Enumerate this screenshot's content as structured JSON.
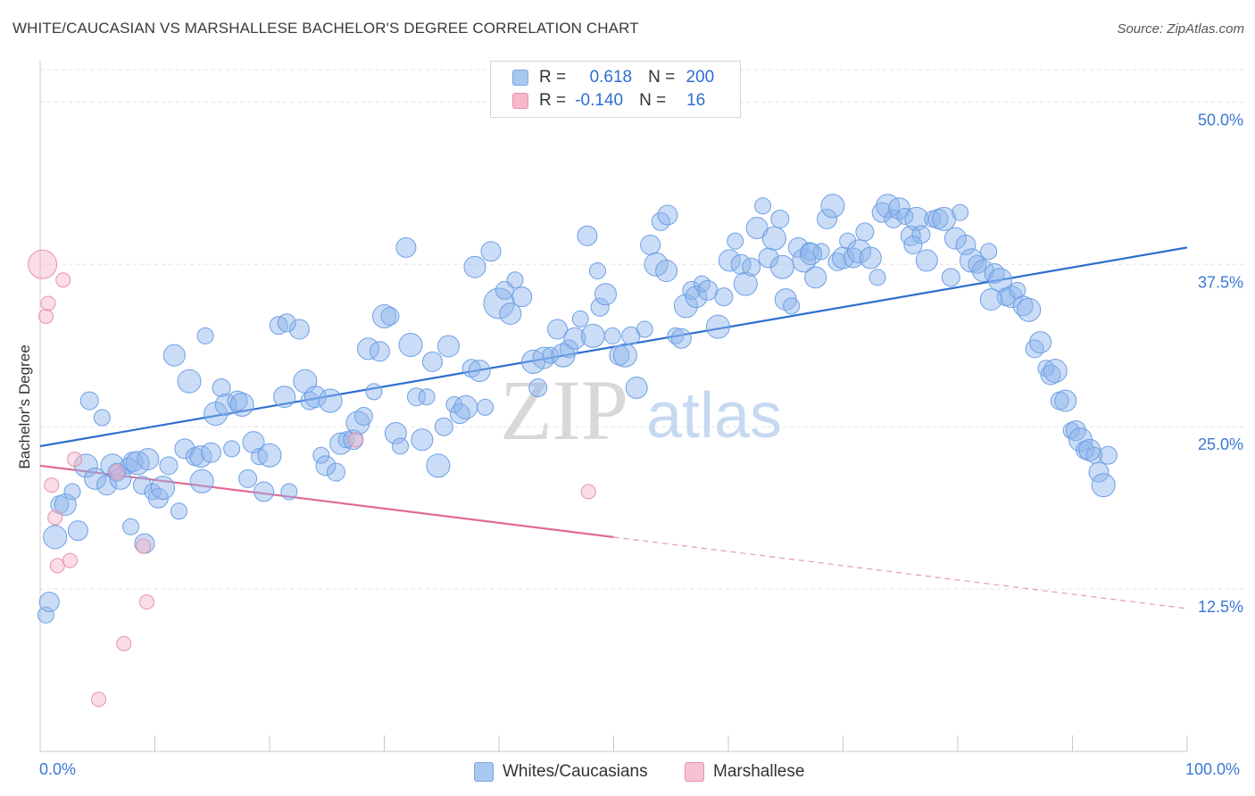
{
  "title": "WHITE/CAUCASIAN VS MARSHALLESE BACHELOR'S DEGREE CORRELATION CHART",
  "source": "Source: ZipAtlas.com",
  "watermark": {
    "zip": "ZIP",
    "atlas": "atlas"
  },
  "legend": {
    "rows": [
      {
        "r_label": "R =",
        "r_value": "0.618",
        "n_label": "N =",
        "n_value": "200",
        "color": "#a8c8f0",
        "border": "#7aa6e0"
      },
      {
        "r_label": "R =",
        "r_value": "-0.140",
        "n_label": "N =",
        "n_value": "16",
        "color": "#f7b8c9",
        "border": "#e890aa"
      }
    ]
  },
  "bottom_legend": [
    {
      "label": "Whites/Caucasians",
      "color": "#a8c8f0",
      "border": "#7aa6e0"
    },
    {
      "label": "Marshallese",
      "color": "#f7c2d1",
      "border": "#e890aa"
    }
  ],
  "chart_data": {
    "type": "scatter",
    "title": "WHITE/CAUCASIAN VS MARSHALLESE BACHELOR'S DEGREE CORRELATION CHART",
    "xlabel": "",
    "ylabel": "Bachelor's Degree",
    "xlim": [
      0,
      100
    ],
    "ylim": [
      0,
      52.5
    ],
    "x_tick_labels": [
      "0.0%",
      "100.0%"
    ],
    "y_ticks": [
      12.5,
      25.0,
      37.5,
      50.0
    ],
    "y_tick_labels": [
      "12.5%",
      "25.0%",
      "37.5%",
      "50.0%"
    ],
    "grid": "horizontal dashed",
    "legend_position": "top-center",
    "series": [
      {
        "name": "Whites/Caucasians",
        "color": "#6d9fe6",
        "fill": "rgba(140,180,235,0.45)",
        "trend": {
          "x": [
            0,
            100
          ],
          "y": [
            23.5,
            38.8
          ],
          "color": "#2d6fce"
        },
        "points": [
          [
            0.5,
            10.5
          ],
          [
            0.8,
            11.5
          ],
          [
            1.3,
            16.5
          ],
          [
            1.7,
            19.0
          ],
          [
            2.2,
            19.0
          ],
          [
            2.8,
            20.0
          ],
          [
            3.3,
            17.0
          ],
          [
            4,
            22.0
          ],
          [
            4.3,
            27.0
          ],
          [
            4.8,
            21.0
          ],
          [
            5.4,
            25.7
          ],
          [
            5.8,
            20.5
          ],
          [
            6.3,
            22.0
          ],
          [
            6.7,
            21.5
          ],
          [
            7.0,
            21.0
          ],
          [
            7.7,
            22.0
          ],
          [
            8.1,
            22.3
          ],
          [
            8.5,
            22.2
          ],
          [
            8.9,
            20.5
          ],
          [
            9.4,
            22.5
          ],
          [
            9.8,
            20.0
          ],
          [
            10.3,
            19.5
          ],
          [
            10.7,
            20.3
          ],
          [
            11.2,
            22.0
          ],
          [
            11.7,
            30.5
          ],
          [
            12.1,
            18.5
          ],
          [
            12.6,
            23.3
          ],
          [
            13,
            28.5
          ],
          [
            13.5,
            22.7
          ],
          [
            14.0,
            22.7
          ],
          [
            14.4,
            32.0
          ],
          [
            14.9,
            23.0
          ],
          [
            15.3,
            26.0
          ],
          [
            15.8,
            28.0
          ],
          [
            16.2,
            26.7
          ],
          [
            16.7,
            23.3
          ],
          [
            17.2,
            27.0
          ],
          [
            17.6,
            26.7
          ],
          [
            18.1,
            21.0
          ],
          [
            18.6,
            23.8
          ],
          [
            19.1,
            22.7
          ],
          [
            19.5,
            20.0
          ],
          [
            20.0,
            22.8
          ],
          [
            20.8,
            32.8
          ],
          [
            21.3,
            27.3
          ],
          [
            21.7,
            20.0
          ],
          [
            22.6,
            32.5
          ],
          [
            23.1,
            28.5
          ],
          [
            23.5,
            27.0
          ],
          [
            24.0,
            27.3
          ],
          [
            24.5,
            22.8
          ],
          [
            24.9,
            22.0
          ],
          [
            25.3,
            27.0
          ],
          [
            25.8,
            21.5
          ],
          [
            26.2,
            23.7
          ],
          [
            26.7,
            24.0
          ],
          [
            27.3,
            24.0
          ],
          [
            27.7,
            25.3
          ],
          [
            28.2,
            25.8
          ],
          [
            28.6,
            31.0
          ],
          [
            29.1,
            27.7
          ],
          [
            29.6,
            30.8
          ],
          [
            30.0,
            33.5
          ],
          [
            30.5,
            33.5
          ],
          [
            31.0,
            24.5
          ],
          [
            31.4,
            23.5
          ],
          [
            31.9,
            38.8
          ],
          [
            32.3,
            31.3
          ],
          [
            32.8,
            27.3
          ],
          [
            33.3,
            24.0
          ],
          [
            33.7,
            27.3
          ],
          [
            34.2,
            30.0
          ],
          [
            34.7,
            22.0
          ],
          [
            35.2,
            25.0
          ],
          [
            35.6,
            31.2
          ],
          [
            36.1,
            26.7
          ],
          [
            36.6,
            26.0
          ],
          [
            37.1,
            26.5
          ],
          [
            37.6,
            29.5
          ],
          [
            38.3,
            29.3
          ],
          [
            38.8,
            26.5
          ],
          [
            39.3,
            38.5
          ],
          [
            40.0,
            34.5
          ],
          [
            40.5,
            35.5
          ],
          [
            41.0,
            33.7
          ],
          [
            41.4,
            36.3
          ],
          [
            42.0,
            35.0
          ],
          [
            43.0,
            30.0
          ],
          [
            43.4,
            28.0
          ],
          [
            43.9,
            30.3
          ],
          [
            44.5,
            30.5
          ],
          [
            45.1,
            32.5
          ],
          [
            45.6,
            30.5
          ],
          [
            46.1,
            31.0
          ],
          [
            46.6,
            31.8
          ],
          [
            47.1,
            33.3
          ],
          [
            47.7,
            39.7
          ],
          [
            48.2,
            32.0
          ],
          [
            48.8,
            34.2
          ],
          [
            49.3,
            35.2
          ],
          [
            49.9,
            32.0
          ],
          [
            50.5,
            30.5
          ],
          [
            51.0,
            30.5
          ],
          [
            51.5,
            32.0
          ],
          [
            52,
            28.0
          ],
          [
            52.7,
            32.5
          ],
          [
            53.2,
            39.0
          ],
          [
            53.7,
            37.5
          ],
          [
            54.1,
            40.8
          ],
          [
            54.6,
            37.0
          ],
          [
            55.4,
            32.0
          ],
          [
            55.9,
            31.8
          ],
          [
            56.3,
            34.3
          ],
          [
            56.8,
            35.5
          ],
          [
            57.2,
            35.0
          ],
          [
            57.7,
            36.0
          ],
          [
            58.2,
            35.5
          ],
          [
            59.1,
            32.7
          ],
          [
            59.6,
            35.0
          ],
          [
            60.1,
            37.8
          ],
          [
            60.6,
            39.3
          ],
          [
            61.1,
            37.5
          ],
          [
            61.5,
            36.0
          ],
          [
            62,
            37.3
          ],
          [
            62.5,
            40.3
          ],
          [
            63.0,
            42.0
          ],
          [
            63.5,
            38.0
          ],
          [
            64,
            39.5
          ],
          [
            64.5,
            41.0
          ],
          [
            65.0,
            34.8
          ],
          [
            65.5,
            34.3
          ],
          [
            66.1,
            38.8
          ],
          [
            66.6,
            37.8
          ],
          [
            67.1,
            38.5
          ],
          [
            67.6,
            36.5
          ],
          [
            68.1,
            38.5
          ],
          [
            68.6,
            41.0
          ],
          [
            69.1,
            42.0
          ],
          [
            69.5,
            37.7
          ],
          [
            70.0,
            38.0
          ],
          [
            70.4,
            39.3
          ],
          [
            70.9,
            38.0
          ],
          [
            71.4,
            38.5
          ],
          [
            71.9,
            40.0
          ],
          [
            72.4,
            38.0
          ],
          [
            73,
            36.5
          ],
          [
            73.4,
            41.5
          ],
          [
            73.9,
            42.0
          ],
          [
            74.4,
            41.0
          ],
          [
            74.9,
            41.8
          ],
          [
            75.4,
            41.2
          ],
          [
            75.9,
            39.7
          ],
          [
            76.4,
            41.0
          ],
          [
            76.8,
            39.8
          ],
          [
            77.3,
            37.8
          ],
          [
            77.8,
            41.0
          ],
          [
            78.3,
            41.0
          ],
          [
            78.8,
            41.0
          ],
          [
            79.4,
            36.5
          ],
          [
            79.8,
            39.5
          ],
          [
            80.2,
            41.5
          ],
          [
            80.7,
            39.0
          ],
          [
            81.2,
            37.8
          ],
          [
            81.7,
            37.5
          ],
          [
            82.2,
            37.0
          ],
          [
            82.7,
            38.5
          ],
          [
            83.2,
            36.8
          ],
          [
            83.7,
            36.3
          ],
          [
            84.2,
            35.0
          ],
          [
            84.7,
            35.0
          ],
          [
            85.2,
            35.5
          ],
          [
            85.7,
            34.3
          ],
          [
            86.2,
            34.0
          ],
          [
            86.7,
            31.0
          ],
          [
            87.2,
            31.5
          ],
          [
            87.7,
            29.5
          ],
          [
            88.1,
            29.0
          ],
          [
            88.5,
            29.3
          ],
          [
            88.9,
            27.0
          ],
          [
            89.4,
            27.0
          ],
          [
            89.9,
            24.7
          ],
          [
            90.3,
            24.7
          ],
          [
            90.7,
            24.0
          ],
          [
            91.1,
            23.2
          ],
          [
            91.5,
            23.2
          ],
          [
            91.9,
            22.8
          ],
          [
            92.3,
            21.5
          ],
          [
            92.7,
            20.5
          ],
          [
            93.1,
            22.8
          ],
          [
            67.2,
            38.3
          ],
          [
            7.9,
            17.3
          ],
          [
            9.1,
            16.0
          ],
          [
            14.1,
            20.8
          ],
          [
            21.5,
            33.0
          ],
          [
            37.9,
            37.3
          ],
          [
            48.6,
            37.0
          ],
          [
            54.7,
            41.3
          ],
          [
            64.7,
            37.3
          ],
          [
            76.1,
            39.0
          ],
          [
            82.9,
            34.8
          ]
        ]
      },
      {
        "name": "Marshallese",
        "color": "#e890aa",
        "fill": "rgba(245,180,200,0.45)",
        "trend": {
          "x": [
            0,
            50
          ],
          "y": [
            22.0,
            16.5
          ],
          "dashed_to": [
            100,
            11.0
          ],
          "color": "#e06a95"
        },
        "points": [
          [
            0.2,
            37.5
          ],
          [
            0.5,
            33.5
          ],
          [
            0.7,
            34.5
          ],
          [
            1.0,
            20.5
          ],
          [
            1.3,
            18.0
          ],
          [
            1.5,
            14.3
          ],
          [
            2.0,
            36.3
          ],
          [
            2.6,
            14.7
          ],
          [
            3.0,
            22.5
          ],
          [
            6.7,
            21.5
          ],
          [
            7.3,
            8.3
          ],
          [
            9.0,
            15.8
          ],
          [
            9.3,
            11.5
          ],
          [
            5.1,
            4.0
          ],
          [
            27.5,
            24.0
          ],
          [
            47.8,
            20.0
          ]
        ]
      }
    ]
  }
}
